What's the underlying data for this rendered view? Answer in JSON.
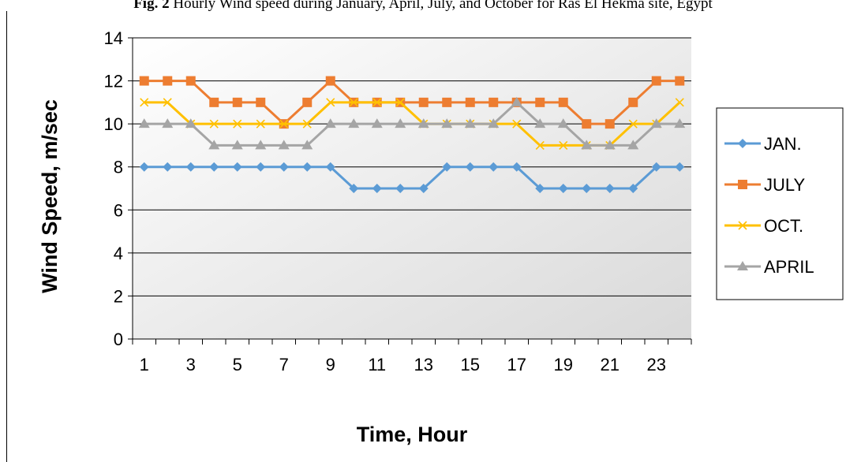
{
  "caption": {
    "prefix": "Fig. 2",
    "text": " Hourly Wind speed during January, April, July, and October for Ras El Hekma site, Egypt"
  },
  "chart_data": {
    "type": "line",
    "title": "",
    "xlabel": "Time, Hour",
    "ylabel": "Wind Speed, m/sec",
    "x": [
      1,
      2,
      3,
      4,
      5,
      6,
      7,
      8,
      9,
      10,
      11,
      12,
      13,
      14,
      15,
      16,
      17,
      18,
      19,
      20,
      21,
      22,
      23,
      24
    ],
    "x_tick_labels": [
      "1",
      "3",
      "5",
      "7",
      "9",
      "11",
      "13",
      "15",
      "17",
      "19",
      "21",
      "23"
    ],
    "ylim": [
      0,
      14
    ],
    "y_ticks": [
      0,
      2,
      4,
      6,
      8,
      10,
      12,
      14
    ],
    "grid": true,
    "legend_position": "right",
    "series": [
      {
        "name": "JAN.",
        "color": "#5B9BD5",
        "marker": "diamond",
        "values": [
          8,
          8,
          8,
          8,
          8,
          8,
          8,
          8,
          8,
          7,
          7,
          7,
          7,
          8,
          8,
          8,
          8,
          7,
          7,
          7,
          7,
          7,
          8,
          8
        ]
      },
      {
        "name": "JULY",
        "color": "#ED7D31",
        "marker": "square",
        "values": [
          12,
          12,
          12,
          11,
          11,
          11,
          10,
          11,
          12,
          11,
          11,
          11,
          11,
          11,
          11,
          11,
          11,
          11,
          11,
          10,
          10,
          11,
          12,
          12
        ]
      },
      {
        "name": "OCT.",
        "color": "#FFC000",
        "marker": "x",
        "values": [
          11,
          11,
          10,
          10,
          10,
          10,
          10,
          10,
          11,
          11,
          11,
          11,
          10,
          10,
          10,
          10,
          10,
          9,
          9,
          9,
          9,
          10,
          10,
          11
        ]
      },
      {
        "name": "APRIL",
        "color": "#A5A5A5",
        "marker": "triangle",
        "values": [
          10,
          10,
          10,
          9,
          9,
          9,
          9,
          9,
          10,
          10,
          10,
          10,
          10,
          10,
          10,
          10,
          11,
          10,
          10,
          9,
          9,
          9,
          10,
          10
        ]
      }
    ]
  }
}
